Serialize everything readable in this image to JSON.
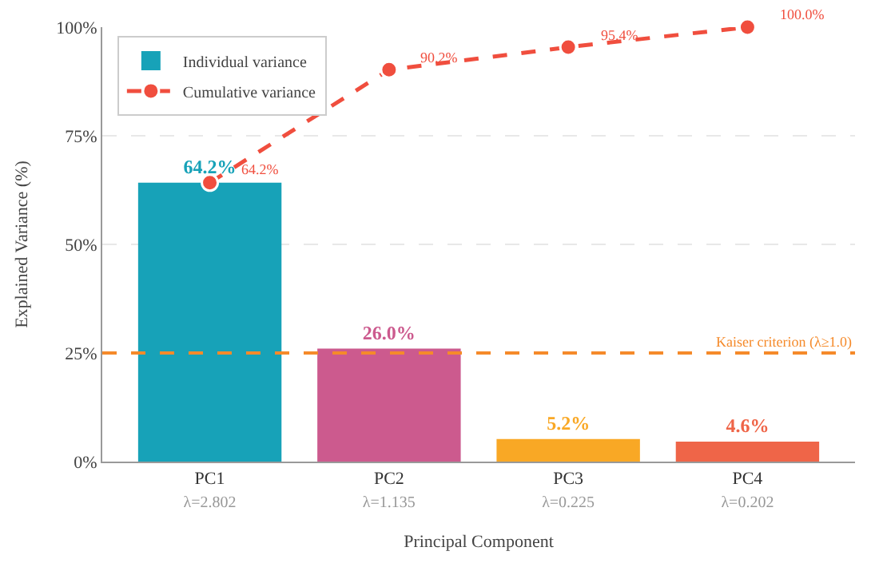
{
  "chart_data": {
    "type": "bar",
    "xlabel": "Principal Component",
    "ylabel": "Explained Variance (%)",
    "categories": [
      "PC1\nλ=2.802",
      "PC2\nλ=1.135",
      "PC3\nλ=0.225",
      "PC4\nλ=0.202"
    ],
    "ylim": [
      0,
      100
    ],
    "yticks": [
      {
        "value": 0,
        "label": "0%"
      },
      {
        "value": 25,
        "label": "25%"
      },
      {
        "value": 50,
        "label": "50%"
      },
      {
        "value": 75,
        "label": "75%"
      },
      {
        "value": 100,
        "label": "100%"
      }
    ],
    "grid": "y",
    "legend": "top left",
    "series": [
      {
        "name": "Individual variance",
        "colors": [
          "#17a2b8",
          "#cc5a8e",
          "#f9a825",
          "#ef6548"
        ],
        "values": [
          64.2,
          26.0,
          5.2,
          4.6
        ],
        "value_labels": [
          "64.2%",
          "26.0%",
          "5.2%",
          "4.6%"
        ]
      },
      {
        "name": "Cumulative variance",
        "type": "line",
        "color": "#f04e3e",
        "marker": "circle",
        "line_style": "dashed",
        "values": [
          64.2,
          90.2,
          95.4,
          100.0
        ],
        "value_labels": [
          "64.2%",
          "90.2%",
          "95.4%",
          "100.0%"
        ]
      }
    ],
    "ref_lines": [
      {
        "axis": "y",
        "value": 25,
        "label": "Kaiser criterion (λ≥1.0)",
        "color": "#f58a2a",
        "line_style": "dashed"
      }
    ]
  }
}
